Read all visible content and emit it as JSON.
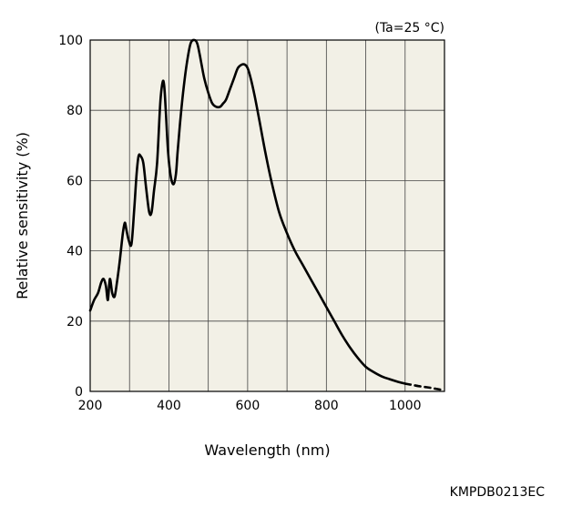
{
  "chart_data": {
    "type": "line",
    "title": "",
    "xlabel": "Wavelength (nm)",
    "ylabel": "Relative sensitivity (%)",
    "condition": "(Ta=25 °C)",
    "xlim": [
      200,
      1100
    ],
    "ylim": [
      0,
      100
    ],
    "x_ticks": [
      200,
      400,
      600,
      800,
      1000
    ],
    "y_ticks": [
      0,
      20,
      40,
      60,
      80,
      100
    ],
    "x_grid_step": 100,
    "y_grid_step": 20,
    "grid": true,
    "plot_background": "#f2f0e6",
    "series": [
      {
        "style": "solid",
        "color": "#000000",
        "x": [
          200,
          210,
          220,
          228,
          234,
          240,
          245,
          250,
          256,
          262,
          268,
          275,
          283,
          288,
          292,
          298,
          305,
          312,
          318,
          323,
          328,
          335,
          342,
          350,
          356,
          362,
          370,
          378,
          384,
          388,
          392,
          398,
          405,
          412,
          418,
          422,
          428,
          436,
          445,
          455,
          465,
          472,
          478,
          483,
          490,
          500,
          510,
          520,
          530,
          538,
          545,
          555,
          565,
          575,
          585,
          593,
          600,
          608,
          618,
          630,
          645,
          660,
          680,
          700,
          720,
          740,
          760,
          780,
          800,
          820,
          840,
          860,
          880,
          900,
          920,
          940,
          960,
          980,
          1000
        ],
        "y": [
          23,
          26,
          28,
          31,
          32,
          30,
          26,
          32,
          28,
          27,
          31,
          37,
          45,
          48,
          46,
          43,
          42,
          52,
          62,
          67,
          67,
          65,
          58,
          51,
          51,
          57,
          65,
          82,
          88,
          87,
          80,
          68,
          61,
          59,
          62,
          68,
          76,
          85,
          93,
          99,
          100,
          99,
          96,
          93,
          89,
          85,
          82,
          81,
          81,
          82,
          83,
          86,
          89,
          92,
          93,
          93,
          92,
          89,
          84,
          77,
          68,
          60,
          51,
          45,
          40,
          36,
          32,
          28,
          24,
          20,
          16,
          12.5,
          9.5,
          7,
          5.5,
          4.3,
          3.5,
          2.8,
          2.2
        ]
      },
      {
        "style": "dashed",
        "color": "#000000",
        "x": [
          1000,
          1020,
          1040,
          1060,
          1080,
          1100
        ],
        "y": [
          2.2,
          1.8,
          1.4,
          1.1,
          0.7,
          0.3
        ]
      }
    ]
  },
  "footer": {
    "code": "KMPDB0213EC"
  }
}
